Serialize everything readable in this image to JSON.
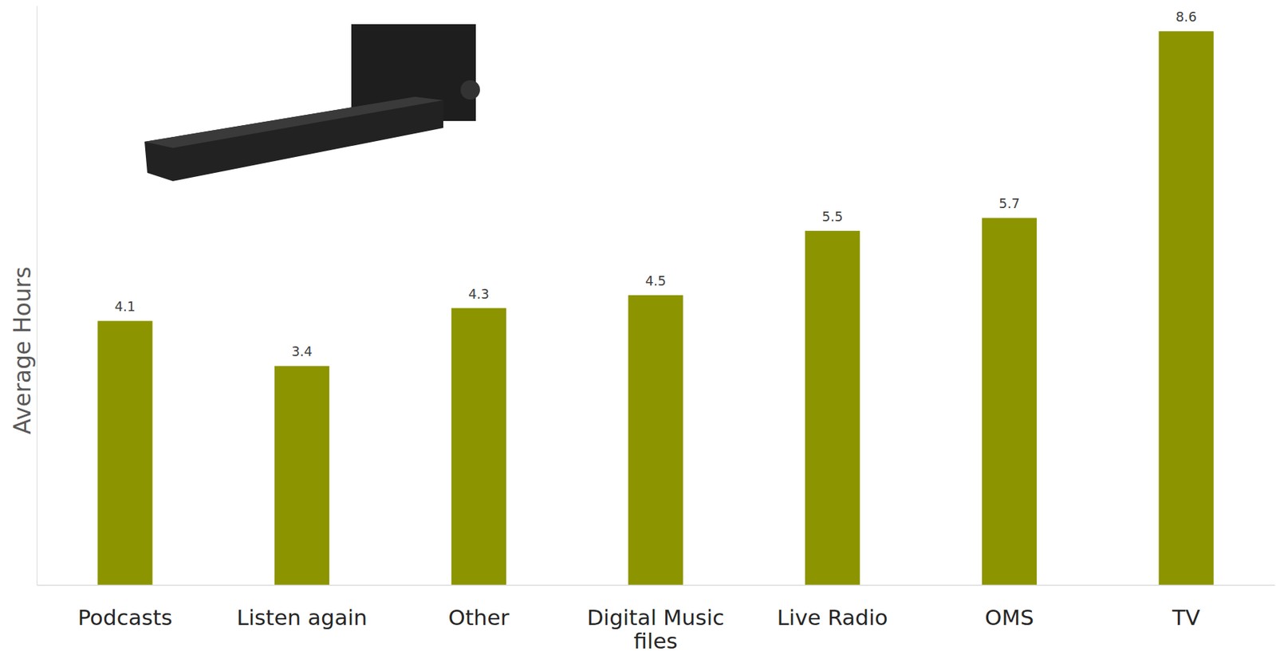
{
  "chart_data": {
    "type": "bar",
    "y_label": "Average Hours",
    "categories": [
      "Podcasts",
      "Listen again",
      "Other",
      "Digital Music files",
      "Live Radio",
      "OMS",
      "TV"
    ],
    "values": [
      4.1,
      3.4,
      4.3,
      4.5,
      5.5,
      5.7,
      8.6
    ],
    "color": "#8c9400",
    "ylim": [
      0,
      9
    ],
    "data_labels": true,
    "grid": false,
    "tick_labels": "x"
  }
}
